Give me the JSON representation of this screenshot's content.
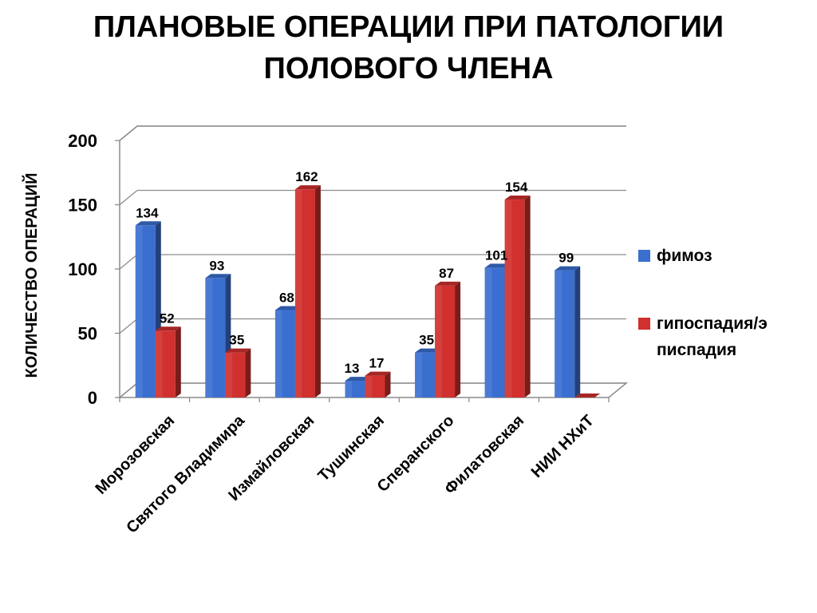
{
  "title_lines": [
    "ПЛАНОВЫЕ ОПЕРАЦИИ ПРИ ПАТОЛОГИИ",
    "ПОЛОВОГО ЧЛЕНА"
  ],
  "chart_data": {
    "type": "bar",
    "title": "ПЛАНОВЫЕ ОПЕРАЦИИ ПРИ ПАТОЛОГИИ ПОЛОВОГО ЧЛЕНА",
    "xlabel": "",
    "ylabel": "КОЛИЧЕСТВО ОПЕРАЦИЙ",
    "ylim": [
      0,
      200
    ],
    "yticks": [
      0,
      50,
      100,
      150,
      200
    ],
    "grid": true,
    "legend_position": "right",
    "categories": [
      "Морозовская",
      "Святого Владимира",
      "Измайловская",
      "Тушинская",
      "Сперанского",
      "Филатовская",
      "НИИ НХиТ"
    ],
    "series": [
      {
        "name": "фимоз",
        "legend_lines": [
          "фимоз"
        ],
        "color": "#3a6fd0",
        "values": [
          134,
          93,
          68,
          13,
          35,
          101,
          99
        ],
        "labels": [
          "134",
          "93",
          "68",
          "13",
          "35",
          "101",
          "99"
        ]
      },
      {
        "name": "гипоспадия/эписпадия",
        "legend_lines": [
          "гипоспадия/э",
          "писпадия"
        ],
        "color": "#d0302e",
        "values": [
          52,
          35,
          162,
          17,
          87,
          154,
          0
        ],
        "labels": [
          "52",
          "35",
          "162",
          "17",
          "87",
          "154",
          ""
        ]
      }
    ]
  }
}
